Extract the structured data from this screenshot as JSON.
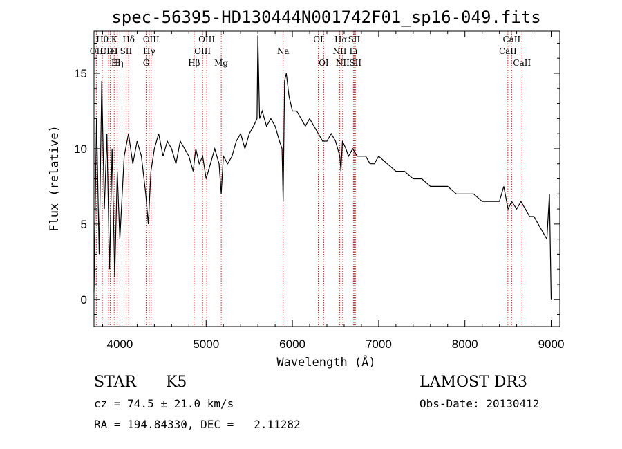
{
  "chart_data": {
    "type": "line",
    "title": "spec-56395-HD130444N001742F01_sp16-049.fits",
    "xlabel": "Wavelength (Å)",
    "ylabel": "Flux (relative)",
    "xlim": [
      3700,
      9100
    ],
    "ylim": [
      -1.8,
      17.8
    ],
    "xticks": [
      4000,
      5000,
      6000,
      7000,
      8000,
      9000
    ],
    "yticks": [
      0,
      5,
      10,
      15
    ],
    "grid": false,
    "legend": "none",
    "line_color": "#000000",
    "marker_color": "#cc2222",
    "spectral_lines": [
      {
        "label": "OII",
        "wavelength": 3727,
        "row": 2
      },
      {
        "label": "Hθ",
        "wavelength": 3797,
        "row": 1
      },
      {
        "label": "OIII",
        "wavelength": 3869,
        "row": 2
      },
      {
        "label": "HeI",
        "wavelength": 3889,
        "row": 2
      },
      {
        "label": "K",
        "wavelength": 3934,
        "row": 1
      },
      {
        "label": "Hη",
        "wavelength": 3970,
        "row": 3
      },
      {
        "label": "H",
        "wavelength": 3968,
        "row": 3
      },
      {
        "label": "SII",
        "wavelength": 4072,
        "row": 2
      },
      {
        "label": "Hδ",
        "wavelength": 4102,
        "row": 1
      },
      {
        "label": "G",
        "wavelength": 4305,
        "row": 3
      },
      {
        "label": "Hγ",
        "wavelength": 4340,
        "row": 2
      },
      {
        "label": "OIII",
        "wavelength": 4363,
        "row": 1
      },
      {
        "label": "Hβ",
        "wavelength": 4861,
        "row": 3
      },
      {
        "label": "OIII",
        "wavelength": 4959,
        "row": 2
      },
      {
        "label": "OIII",
        "wavelength": 5007,
        "row": 1
      },
      {
        "label": "Mg",
        "wavelength": 5175,
        "row": 3
      },
      {
        "label": "Na",
        "wavelength": 5893,
        "row": 2
      },
      {
        "label": "OI",
        "wavelength": 6300,
        "row": 1
      },
      {
        "label": "OI",
        "wavelength": 6363,
        "row": 3
      },
      {
        "label": "NII",
        "wavelength": 6548,
        "row": 2
      },
      {
        "label": "Hα",
        "wavelength": 6563,
        "row": 1
      },
      {
        "label": "NII",
        "wavelength": 6583,
        "row": 3
      },
      {
        "label": "Li",
        "wavelength": 6708,
        "row": 2
      },
      {
        "label": "SII",
        "wavelength": 6716,
        "row": 1
      },
      {
        "label": "SII",
        "wavelength": 6731,
        "row": 3
      },
      {
        "label": "CaII",
        "wavelength": 8498,
        "row": 2
      },
      {
        "label": "CaII",
        "wavelength": 8542,
        "row": 1
      },
      {
        "label": "CaII",
        "wavelength": 8662,
        "row": 3
      }
    ],
    "series": [
      {
        "x": [
          3700,
          3730,
          3760,
          3790,
          3820,
          3850,
          3880,
          3910,
          3940,
          3970,
          4000,
          4050,
          4100,
          4150,
          4200,
          4250,
          4300,
          4330,
          4360,
          4400,
          4450,
          4500,
          4550,
          4600,
          4650,
          4700,
          4750,
          4800,
          4850,
          4880,
          4920,
          4960,
          5000,
          5050,
          5100,
          5150,
          5175,
          5200,
          5250,
          5300,
          5350,
          5400,
          5450,
          5500,
          5550,
          5590,
          5600,
          5620,
          5650,
          5700,
          5750,
          5800,
          5850,
          5880,
          5893,
          5910,
          5930,
          5960,
          6000,
          6050,
          6100,
          6150,
          6200,
          6250,
          6300,
          6350,
          6400,
          6450,
          6500,
          6550,
          6563,
          6580,
          6620,
          6650,
          6700,
          6750,
          6800,
          6850,
          6900,
          6950,
          7000,
          7100,
          7200,
          7300,
          7400,
          7500,
          7600,
          7700,
          7800,
          7900,
          8000,
          8100,
          8200,
          8300,
          8400,
          8450,
          8500,
          8542,
          8600,
          8650,
          8700,
          8750,
          8800,
          8850,
          8900,
          8950,
          8980,
          9000
        ],
        "y": [
          0.5,
          12,
          3,
          14.5,
          6,
          11,
          2,
          10,
          1.5,
          8.5,
          4,
          9.5,
          11,
          9,
          10.5,
          9.5,
          7,
          5,
          8.5,
          10,
          11,
          9.5,
          10.5,
          10,
          9,
          10.5,
          10,
          9.5,
          8.5,
          10,
          9,
          9.5,
          8,
          9,
          10,
          9,
          7,
          9.5,
          9,
          9.5,
          10.5,
          11,
          10,
          11,
          11.5,
          12,
          17.5,
          12,
          12.5,
          11.5,
          12,
          11.5,
          10.5,
          10,
          6.5,
          14.5,
          15,
          13.5,
          12.5,
          12.5,
          12,
          11.5,
          12,
          11.5,
          11,
          10.5,
          10.5,
          11,
          10.5,
          9.5,
          8.5,
          10.5,
          10,
          9.5,
          10,
          9.5,
          9.5,
          9.5,
          9,
          9,
          9.5,
          9,
          8.5,
          8.5,
          8,
          8,
          7.5,
          7.5,
          7.5,
          7,
          7,
          7,
          6.5,
          6.5,
          6.5,
          7.5,
          6,
          6.5,
          6,
          6.5,
          6,
          5.5,
          5.5,
          5,
          4.5,
          4,
          7,
          0
        ]
      }
    ]
  },
  "footer": {
    "object_type": "STAR",
    "subclass": "K5",
    "survey": "LAMOST DR3",
    "cz": "cz = 74.5 ± 21.0 km/s",
    "obs_date": "Obs-Date: 20130412",
    "coords": "RA = 194.84330, DEC =   2.11282"
  }
}
